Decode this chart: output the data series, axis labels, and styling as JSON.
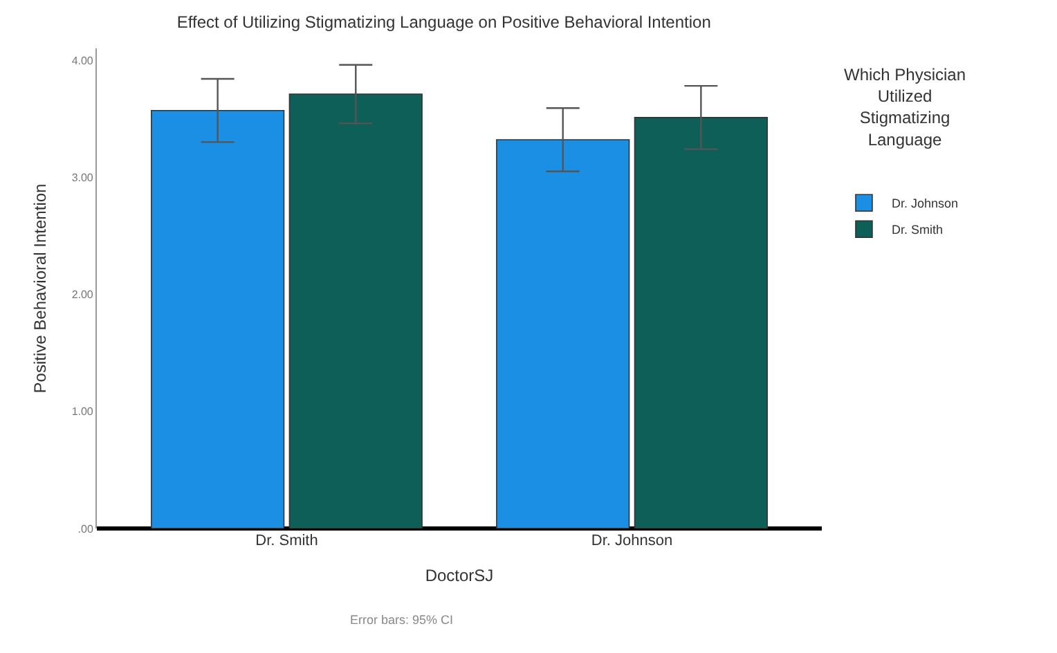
{
  "chart_data": {
    "type": "bar",
    "title": "Effect of Utilizing Stigmatizing Language on Positive Behavioral Intention",
    "xlabel": "DoctorSJ",
    "ylabel": "Positive Behavioral Intention",
    "legend_title": "Which Physician Utilized Stigmatizing Language",
    "categories": [
      "Dr. Smith",
      "Dr. Johnson"
    ],
    "series": [
      {
        "name": "Dr. Johnson",
        "color": "#1a8fe3",
        "values": [
          3.57,
          3.32
        ],
        "errors": [
          0.27,
          0.27
        ]
      },
      {
        "name": "Dr. Smith",
        "color": "#0d5f58",
        "values": [
          3.71,
          3.51
        ],
        "errors": [
          0.25,
          0.27
        ]
      }
    ],
    "ylim": [
      0,
      4.1
    ],
    "yticks": [
      {
        "value": 0,
        "label": ".00"
      },
      {
        "value": 1,
        "label": "1.00"
      },
      {
        "value": 2,
        "label": "2.00"
      },
      {
        "value": 3,
        "label": "3.00"
      },
      {
        "value": 4,
        "label": "4.00"
      }
    ],
    "annotations": [
      "Error bars: 95% CI"
    ],
    "legend": "top right"
  }
}
